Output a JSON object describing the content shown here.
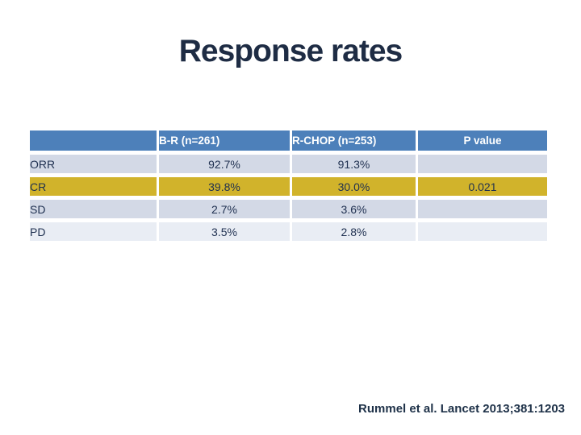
{
  "slide": {
    "title": "Response rates",
    "citation": "Rummel et al. Lancet 2013;381:1203"
  },
  "table": {
    "columns": [
      "",
      "B-R (n=261)",
      "R-CHOP (n=253)",
      "P value"
    ],
    "rows": [
      {
        "label": "ORR",
        "br": "92.7%",
        "rchop": "91.3%",
        "p": ""
      },
      {
        "label": "CR",
        "br": "39.8%",
        "rchop": "30.0%",
        "p": "0.021"
      },
      {
        "label": "SD",
        "br": "2.7%",
        "rchop": "3.6%",
        "p": ""
      },
      {
        "label": "PD",
        "br": "3.5%",
        "rchop": "2.8%",
        "p": ""
      }
    ],
    "highlighted_row": "CR"
  },
  "colors": {
    "header_blue": "#4d80ba",
    "header_text": "#ffffff",
    "row_band_dark": "#d3d9e6",
    "row_band_light": "#e9edf4",
    "highlight_gold": "#d1b32b",
    "title_navy": "#1e2c44",
    "citation_navy": "#1e3148"
  }
}
